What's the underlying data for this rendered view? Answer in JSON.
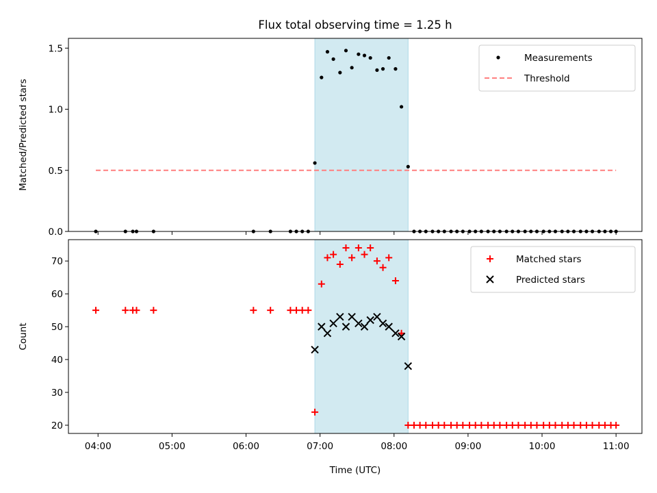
{
  "title": "Flux total observing time = 1.25 h",
  "xlabel": "Time (UTC)",
  "xticks": [
    {
      "t": 4,
      "label": "04:00"
    },
    {
      "t": 5,
      "label": "05:00"
    },
    {
      "t": 6,
      "label": "06:00"
    },
    {
      "t": 7,
      "label": "07:00"
    },
    {
      "t": 8,
      "label": "08:00"
    },
    {
      "t": 9,
      "label": "09:00"
    },
    {
      "t": 10,
      "label": "10:00"
    },
    {
      "t": 11,
      "label": "11:00"
    }
  ],
  "colors": {
    "measurement": "#000000",
    "threshold": "#ff7f7f",
    "matched": "#ff0000",
    "predicted": "#000000",
    "shade": "#add8e6"
  },
  "chart_data": [
    {
      "type": "scatter",
      "ylabel": "Matched/Predicted stars",
      "xlim": [
        3.6,
        11.35
      ],
      "ylim": [
        0,
        1.58
      ],
      "yticks": [
        {
          "v": 0.0,
          "label": "0.0"
        },
        {
          "v": 0.5,
          "label": "0.5"
        },
        {
          "v": 1.0,
          "label": "1.0"
        },
        {
          "v": 1.5,
          "label": "1.5"
        }
      ],
      "shaded_span": [
        6.93,
        8.19
      ],
      "legend_location": "top-right",
      "legend": [
        {
          "key": "measurements",
          "label": "Measurements"
        },
        {
          "key": "threshold",
          "label": "Threshold"
        }
      ],
      "threshold": {
        "name": "Threshold",
        "y": 0.5,
        "x_range": [
          3.97,
          11.0
        ]
      },
      "series": [
        {
          "name": "Measurements",
          "x": [
            3.97,
            4.37,
            4.47,
            4.52,
            4.75,
            6.1,
            6.33,
            6.6,
            6.68,
            6.76,
            6.84,
            6.93,
            7.02,
            7.1,
            7.18,
            7.27,
            7.35,
            7.43,
            7.52,
            7.6,
            7.68,
            7.77,
            7.85,
            7.93,
            8.02,
            8.1,
            8.19,
            8.27,
            8.35,
            8.43,
            8.52,
            8.6,
            8.68,
            8.77,
            8.85,
            8.93,
            9.02,
            9.1,
            9.18,
            9.27,
            9.35,
            9.43,
            9.52,
            9.6,
            9.68,
            9.77,
            9.85,
            9.93,
            10.02,
            10.1,
            10.18,
            10.27,
            10.35,
            10.43,
            10.52,
            10.6,
            10.68,
            10.77,
            10.85,
            10.93,
            11.0
          ],
          "y": [
            0.0,
            0.0,
            0.0,
            0.0,
            0.0,
            0.0,
            0.0,
            0.0,
            0.0,
            0.0,
            0.0,
            0.56,
            1.26,
            1.47,
            1.41,
            1.3,
            1.48,
            1.34,
            1.45,
            1.44,
            1.42,
            1.32,
            1.33,
            1.42,
            1.33,
            1.02,
            0.53,
            0.0,
            0.0,
            0.0,
            0.0,
            0.0,
            0.0,
            0.0,
            0.0,
            0.0,
            0.0,
            0.0,
            0.0,
            0.0,
            0.0,
            0.0,
            0.0,
            0.0,
            0.0,
            0.0,
            0.0,
            0.0,
            0.0,
            0.0,
            0.0,
            0.0,
            0.0,
            0.0,
            0.0,
            0.0,
            0.0,
            0.0,
            0.0,
            0.0,
            0.0
          ]
        }
      ]
    },
    {
      "type": "scatter",
      "ylabel": "Count",
      "xlim": [
        3.6,
        11.35
      ],
      "ylim": [
        17.5,
        76.5
      ],
      "yticks": [
        {
          "v": 20,
          "label": "20"
        },
        {
          "v": 30,
          "label": "30"
        },
        {
          "v": 40,
          "label": "40"
        },
        {
          "v": 50,
          "label": "50"
        },
        {
          "v": 60,
          "label": "60"
        },
        {
          "v": 70,
          "label": "70"
        }
      ],
      "shaded_span": [
        6.93,
        8.19
      ],
      "legend_location": "top-right",
      "legend": [
        {
          "key": "matched",
          "label": "Matched stars"
        },
        {
          "key": "predicted",
          "label": "Predicted stars"
        }
      ],
      "series": [
        {
          "name": "Matched stars",
          "x": [
            3.97,
            4.37,
            4.47,
            4.52,
            4.75,
            6.1,
            6.33,
            6.6,
            6.68,
            6.76,
            6.84,
            6.93,
            7.02,
            7.1,
            7.18,
            7.27,
            7.35,
            7.43,
            7.52,
            7.6,
            7.68,
            7.77,
            7.85,
            7.93,
            8.02,
            8.1,
            8.19,
            8.27,
            8.35,
            8.43,
            8.52,
            8.6,
            8.68,
            8.77,
            8.85,
            8.93,
            9.02,
            9.1,
            9.18,
            9.27,
            9.35,
            9.43,
            9.52,
            9.6,
            9.68,
            9.77,
            9.85,
            9.93,
            10.02,
            10.1,
            10.18,
            10.27,
            10.35,
            10.43,
            10.52,
            10.6,
            10.68,
            10.77,
            10.85,
            10.93,
            11.0
          ],
          "y": [
            55,
            55,
            55,
            55,
            55,
            55,
            55,
            55,
            55,
            55,
            55,
            24,
            63,
            71,
            72,
            69,
            74,
            71,
            74,
            72,
            74,
            70,
            68,
            71,
            64,
            48,
            20,
            20,
            20,
            20,
            20,
            20,
            20,
            20,
            20,
            20,
            20,
            20,
            20,
            20,
            20,
            20,
            20,
            20,
            20,
            20,
            20,
            20,
            20,
            20,
            20,
            20,
            20,
            20,
            20,
            20,
            20,
            20,
            20,
            20,
            20
          ]
        },
        {
          "name": "Predicted stars",
          "x": [
            6.93,
            7.02,
            7.1,
            7.18,
            7.27,
            7.35,
            7.43,
            7.52,
            7.6,
            7.68,
            7.77,
            7.85,
            7.93,
            8.02,
            8.1,
            8.19
          ],
          "y": [
            43,
            50,
            48,
            51,
            53,
            50,
            53,
            51,
            50,
            52,
            53,
            51,
            50,
            48,
            47,
            38
          ]
        }
      ]
    }
  ]
}
